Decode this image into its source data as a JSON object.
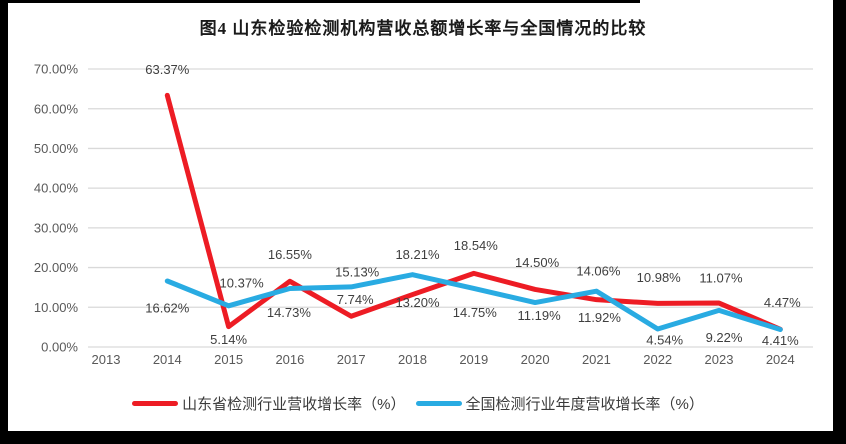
{
  "title": "图4  山东检验检测机构营收总额增长率与全国情况的比较",
  "colors": {
    "grid": "#D9D9D9",
    "axis_text": "#595959",
    "label_text": "#3F3F3F",
    "frame": "#000000",
    "background": "#FFFFFF",
    "shandong_red": "#ED1C24",
    "national_blue": "#29ABE2"
  },
  "chart_data": {
    "type": "line",
    "title": "图4  山东检验检测机构营收总额增长率与全国情况的比较",
    "x": [
      "2013",
      "2014",
      "2015",
      "2016",
      "2017",
      "2018",
      "2019",
      "2020",
      "2021",
      "2022",
      "2023",
      "2024"
    ],
    "xlabel": "",
    "ylabel": "",
    "ylim": [
      0,
      70
    ],
    "ytick_step": 10,
    "yticks": [
      "0.00%",
      "10.00%",
      "20.00%",
      "30.00%",
      "40.00%",
      "50.00%",
      "60.00%",
      "70.00%"
    ],
    "grid": true,
    "legend_position": "bottom",
    "series": [
      {
        "name": "山东省检测行业营收增长率（%）",
        "color": "#ED1C24",
        "values": [
          null,
          63.37,
          5.14,
          16.55,
          7.74,
          13.2,
          18.54,
          14.5,
          11.92,
          10.98,
          11.07,
          4.47
        ],
        "value_labels": [
          null,
          "63.37%",
          "5.14%",
          "16.55%",
          "7.74%",
          "13.20%",
          "18.54%",
          "14.50%",
          "11.92%",
          "10.98%",
          "11.07%",
          "4.47%"
        ],
        "label_offsets": [
          null,
          [
            0,
            -26
          ],
          [
            0,
            13
          ],
          [
            0,
            -27
          ],
          [
            4,
            -17
          ],
          [
            5,
            8
          ],
          [
            2,
            -28
          ],
          [
            2,
            -27
          ],
          [
            3,
            18
          ],
          [
            1,
            -26
          ],
          [
            2,
            -25
          ],
          [
            2,
            -27
          ]
        ]
      },
      {
        "name": "全国检测行业年度营收增长率（%）",
        "color": "#29ABE2",
        "values": [
          null,
          16.62,
          10.37,
          14.73,
          15.13,
          18.21,
          14.75,
          11.19,
          14.06,
          4.54,
          9.22,
          4.41
        ],
        "value_labels": [
          null,
          "16.62%",
          "10.37%",
          "14.73%",
          "15.13%",
          "18.21%",
          "14.75%",
          "11.19%",
          "14.06%",
          "4.54%",
          "9.22%",
          "4.41%"
        ],
        "label_offsets": [
          null,
          [
            0,
            27
          ],
          [
            13,
            -23
          ],
          [
            -1,
            24
          ],
          [
            6,
            -15
          ],
          [
            5,
            -20
          ],
          [
            1,
            24
          ],
          [
            4,
            13
          ],
          [
            2,
            -20
          ],
          [
            7,
            11
          ],
          [
            5,
            27
          ],
          [
            0,
            11
          ]
        ]
      }
    ]
  }
}
